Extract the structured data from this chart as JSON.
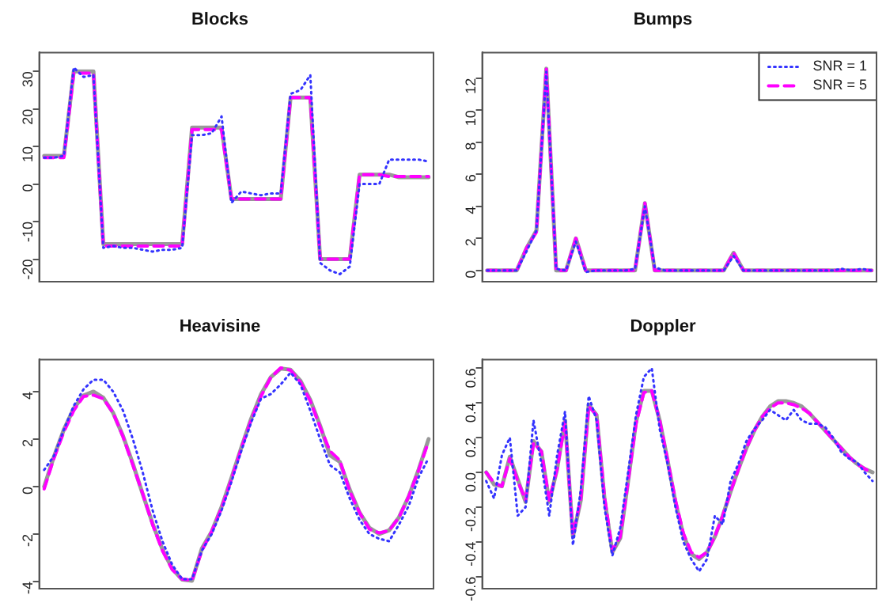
{
  "chart_data": [
    {
      "type": "line",
      "title": "Blocks",
      "tick_labels": "y",
      "grid": false,
      "legend": false,
      "marker": "none",
      "ylim": [
        -26,
        35
      ],
      "yticks": [
        -20,
        -10,
        0,
        10,
        20,
        30
      ],
      "categories": [
        null,
        null,
        null,
        null,
        null,
        null,
        null,
        null,
        null,
        null,
        null,
        null,
        null,
        null,
        null,
        null,
        null,
        null,
        null,
        null,
        null,
        null,
        null,
        null,
        null,
        null,
        null,
        null,
        null,
        null,
        null,
        null,
        null,
        null,
        null,
        null,
        null,
        null,
        null,
        null
      ],
      "series": [
        {
          "color": "#999999",
          "line_style": "solid",
          "values": [
            7.5,
            7.5,
            7.5,
            30,
            30,
            30,
            -16,
            -16,
            -16,
            -16,
            -16,
            -16,
            -16,
            -16,
            -16,
            15,
            15,
            15,
            15,
            -4,
            -4,
            -4,
            -4,
            -4,
            -4,
            23,
            23,
            23,
            -20,
            -20,
            -20,
            -20,
            2.5,
            2.5,
            2.5,
            2.5,
            1.8,
            1.8,
            1.8,
            1.8
          ]
        },
        {
          "color": "#3333ff",
          "line_style": "dotted",
          "values": [
            7,
            7,
            7.5,
            31,
            28.5,
            29,
            -17,
            -16.5,
            -17,
            -17,
            -17.5,
            -18,
            -17.5,
            -17.5,
            -17,
            13,
            13,
            13.5,
            18,
            -5,
            -2,
            -2.5,
            -3,
            -2.5,
            -2.5,
            24,
            25,
            29,
            -21,
            -23,
            -24,
            -22,
            0,
            0,
            0,
            6.5,
            6.5,
            6.5,
            6.5,
            6
          ]
        },
        {
          "color": "#ff00ff",
          "line_style": "dashed",
          "values": [
            7,
            7,
            7,
            29.5,
            29.5,
            29.5,
            -16.5,
            -16.5,
            -16.5,
            -16.5,
            -16.5,
            -16.5,
            -16.5,
            -16.5,
            -16.5,
            14.5,
            14.5,
            14.5,
            14.5,
            -4,
            -4,
            -4,
            -4,
            -4,
            -4,
            23,
            23,
            23,
            -20,
            -20,
            -20,
            -20,
            2.5,
            2.5,
            2.5,
            2,
            2,
            2,
            2,
            2
          ]
        }
      ]
    },
    {
      "type": "line",
      "title": "Bumps",
      "tick_labels": "y",
      "grid": false,
      "legend": "top right",
      "marker": "none",
      "ylim": [
        -0.7,
        13.6
      ],
      "yticks": [
        0,
        2,
        4,
        6,
        8,
        10,
        12
      ],
      "categories": [
        null,
        null,
        null,
        null,
        null,
        null,
        null,
        null,
        null,
        null,
        null,
        null,
        null,
        null,
        null,
        null,
        null,
        null,
        null,
        null,
        null,
        null,
        null,
        null,
        null,
        null,
        null,
        null,
        null,
        null,
        null,
        null,
        null,
        null,
        null,
        null,
        null,
        null,
        null,
        null
      ],
      "series": [
        {
          "color": "#999999",
          "line_style": "solid",
          "values": [
            0,
            0,
            0,
            0,
            1.4,
            2.5,
            12.6,
            0,
            0,
            2,
            0,
            0,
            0,
            0,
            0,
            0,
            4.2,
            0,
            0,
            0,
            0,
            0,
            0,
            0,
            0,
            1.1,
            0,
            0,
            0,
            0,
            0,
            0,
            0,
            0,
            0,
            0,
            0,
            0,
            0,
            0
          ]
        },
        {
          "name": "SNR = 1",
          "color": "#3333ff",
          "line_style": "dotted",
          "values": [
            0,
            0,
            0,
            0,
            1.2,
            2.5,
            12.4,
            0.1,
            0,
            1.8,
            -0.1,
            0,
            0,
            0,
            0,
            0.1,
            4,
            0.2,
            0,
            0,
            0,
            0,
            0,
            0,
            0,
            0.9,
            0,
            0,
            0,
            0,
            0,
            0,
            0,
            0,
            0,
            0,
            0.1,
            0,
            0.1,
            0
          ]
        },
        {
          "name": "SNR = 5",
          "color": "#ff00ff",
          "line_style": "dashed",
          "values": [
            0,
            0,
            0,
            0,
            1.4,
            2.4,
            12.6,
            0,
            0,
            2,
            0,
            0,
            0,
            0,
            0,
            0,
            4.2,
            0,
            0,
            0,
            0,
            0,
            0,
            0,
            0,
            1.1,
            0,
            0,
            0,
            0,
            0,
            0,
            0,
            0,
            0,
            0,
            0,
            0,
            0,
            0
          ]
        }
      ]
    },
    {
      "type": "line",
      "title": "Heavisine",
      "tick_labels": "y",
      "grid": false,
      "legend": false,
      "marker": "none",
      "ylim": [
        -4.3,
        5.35
      ],
      "yticks": [
        -4,
        -2,
        0,
        2,
        4
      ],
      "categories": [
        null,
        null,
        null,
        null,
        null,
        null,
        null,
        null,
        null,
        null,
        null,
        null,
        null,
        null,
        null,
        null,
        null,
        null,
        null,
        null,
        null,
        null,
        null,
        null,
        null,
        null,
        null,
        null,
        null,
        null,
        null,
        null,
        null,
        null,
        null,
        null,
        null,
        null,
        null,
        null
      ],
      "series": [
        {
          "color": "#999999",
          "line_style": "solid",
          "values": [
            0,
            1.27,
            2.4,
            3.29,
            3.84,
            4,
            3.74,
            3.1,
            2.13,
            0.96,
            -0.32,
            -1.56,
            -2.65,
            -3.46,
            -3.92,
            -3.97,
            -2.61,
            -1.89,
            -0.86,
            0.36,
            1.64,
            2.86,
            3.89,
            4.61,
            4.97,
            4.92,
            4.46,
            3.65,
            2.56,
            1.32,
            1.04,
            -0.13,
            -1.1,
            -1.74,
            -2,
            -1.84,
            -1.29,
            -0.4,
            0.73,
            2
          ]
        },
        {
          "color": "#3333ff",
          "line_style": "dotted",
          "values": [
            0.7,
            1.3,
            2.4,
            3.4,
            4.1,
            4.5,
            4.5,
            4,
            3.2,
            2,
            0.6,
            -1,
            -2.3,
            -3.3,
            -3.9,
            -3.9,
            -2.7,
            -2,
            -1,
            0.2,
            1.5,
            2.7,
            3.7,
            3.9,
            4.3,
            4.8,
            4.3,
            3.2,
            2,
            0.9,
            0.6,
            -0.5,
            -1.4,
            -2,
            -2.2,
            -2.3,
            -1.6,
            -0.8,
            0.4,
            1.2
          ]
        },
        {
          "color": "#ff00ff",
          "line_style": "dashed",
          "values": [
            -0.1,
            1.2,
            2.3,
            3.2,
            3.8,
            3.85,
            3.7,
            3.1,
            2.1,
            0.9,
            -0.3,
            -1.6,
            -2.7,
            -3.5,
            -3.9,
            -3.95,
            -2.7,
            -1.9,
            -0.9,
            0.3,
            1.6,
            2.8,
            3.8,
            4.6,
            5,
            4.9,
            4.4,
            3.6,
            2.5,
            1.5,
            1.1,
            -0.2,
            -1.1,
            -1.8,
            -1.95,
            -1.85,
            -1.3,
            -0.4,
            0.7,
            1.9
          ]
        }
      ]
    },
    {
      "type": "line",
      "title": "Doppler",
      "tick_labels": "y",
      "grid": false,
      "legend": false,
      "marker": "none",
      "ylim": [
        -0.67,
        0.65
      ],
      "yticks": [
        -0.6,
        -0.4,
        -0.2,
        {
          "value": 0,
          "label": "0.0"
        },
        0.2,
        0.4,
        0.6
      ],
      "categories": [
        null,
        null,
        null,
        null,
        null,
        null,
        null,
        null,
        null,
        null,
        null,
        null,
        null,
        null,
        null,
        null,
        null,
        null,
        null,
        null,
        null,
        null,
        null,
        null,
        null,
        null,
        null,
        null,
        null,
        null,
        null,
        null,
        null,
        null,
        null,
        null,
        null,
        null,
        null,
        null,
        null,
        null,
        null,
        null,
        null,
        null,
        null,
        null,
        null,
        null
      ],
      "series": [
        {
          "color": "#999999",
          "line_style": "solid",
          "values": [
            0,
            -0.07,
            -0.08,
            0.09,
            -0.04,
            -0.17,
            0.18,
            0.12,
            -0.17,
            0.02,
            0.3,
            -0.37,
            -0.16,
            0.39,
            0.33,
            -0.15,
            -0.46,
            -0.38,
            -0.05,
            0.29,
            0.47,
            0.47,
            0.3,
            0.07,
            -0.17,
            -0.36,
            -0.47,
            -0.5,
            -0.46,
            -0.37,
            -0.25,
            -0.11,
            0.02,
            0.14,
            0.24,
            0.32,
            0.38,
            0.41,
            0.41,
            0.4,
            0.38,
            0.34,
            0.29,
            0.24,
            0.19,
            0.14,
            0.09,
            0.05,
            0.02,
            0
          ]
        },
        {
          "color": "#3333ff",
          "line_style": "dotted",
          "values": [
            -0.05,
            -0.15,
            0.1,
            0.2,
            -0.25,
            -0.2,
            0.3,
            0.05,
            -0.25,
            0.1,
            0.35,
            -0.42,
            -0.1,
            0.44,
            0.3,
            -0.2,
            -0.48,
            -0.32,
            0,
            0.33,
            0.55,
            0.6,
            0.25,
            0.05,
            -0.2,
            -0.4,
            -0.5,
            -0.57,
            -0.5,
            -0.25,
            -0.3,
            -0.05,
            0.05,
            0.18,
            0.25,
            0.3,
            0.36,
            0.33,
            0.3,
            0.36,
            0.3,
            0.28,
            0.28,
            0.26,
            0.2,
            0.12,
            0.08,
            0.06,
            0,
            -0.05
          ]
        },
        {
          "color": "#ff00ff",
          "line_style": "dashed",
          "values": [
            0,
            -0.06,
            -0.08,
            0.08,
            -0.05,
            -0.16,
            0.17,
            0.12,
            -0.16,
            0.02,
            0.29,
            -0.36,
            -0.15,
            0.38,
            0.33,
            -0.14,
            -0.45,
            -0.37,
            -0.05,
            0.28,
            0.46,
            0.47,
            0.3,
            0.07,
            -0.16,
            -0.35,
            -0.46,
            -0.49,
            -0.46,
            -0.37,
            -0.25,
            -0.11,
            0.02,
            0.14,
            0.24,
            0.32,
            0.37,
            0.4,
            0.4,
            0.39,
            0.37,
            0.34,
            0.29,
            0.24,
            0.19,
            0.14,
            0.09,
            0.05,
            0.02,
            0
          ]
        }
      ]
    }
  ]
}
